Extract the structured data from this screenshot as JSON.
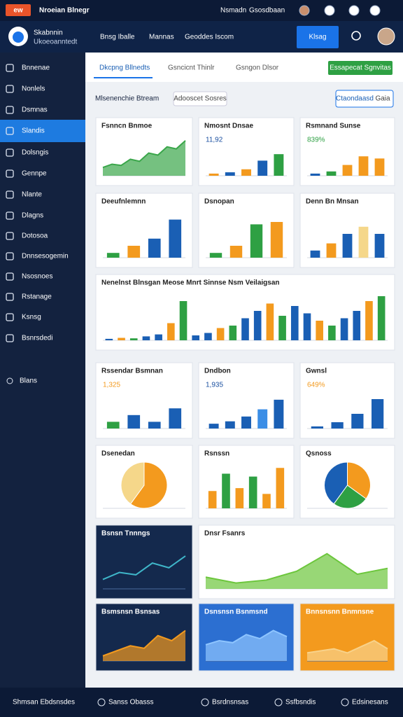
{
  "top_bar": {
    "badge": "ew",
    "title": "Nroeian Blnegr",
    "links": [
      "Nsmadn",
      "Gsosdbaan"
    ]
  },
  "header": {
    "brand": "Skabnnin",
    "subtitle": "Ukoeoanntedt",
    "nav": [
      "Bnsg Iballe",
      "Mannas",
      "Geoddes Iscom"
    ],
    "button": "Klsag"
  },
  "sidebar": {
    "items": [
      "Bnnenae",
      "Nonlels",
      "Dsmnas",
      "Slandis",
      "Dolsngis",
      "Gennpe",
      "Nlante",
      "Dlagns",
      "Dotosoa",
      "Dnnsesogemin",
      "Nsosnoes",
      "Rstanage",
      "Ksnsg",
      "Bsnrsdedi"
    ],
    "active": 3,
    "footer_item": "Blans"
  },
  "tabs": {
    "items": [
      "Dkcpng Bllnedts",
      "Gsncicnt Thinlr",
      "Gsngon Dlsor"
    ],
    "active": 0,
    "action": "Essapecat Sgnvitas"
  },
  "section": {
    "title": "Mlsenenchie Btream",
    "filter": "Adooscet Sosres",
    "button": "Ctaondaasd",
    "button2": "Gaia"
  },
  "cards": [
    {
      "title": "Fsnncn Bnmoe",
      "kind": "area",
      "values": [
        20,
        28,
        25,
        40,
        35,
        55,
        50,
        70,
        65,
        85
      ],
      "colors": [
        "#3aa64a"
      ],
      "ylim": [
        0,
        100
      ],
      "bg": "#ffffff"
    },
    {
      "title": "Nmosnt Dnsae",
      "value": "11,92",
      "value_color": "#1a4fa0",
      "kind": "bar",
      "values": [
        5,
        8,
        15,
        35,
        50
      ],
      "colors": [
        "#f39a1e",
        "#1a5fb4",
        "#f39a1e",
        "#1a5fb4",
        "#2ea043"
      ],
      "ylim": [
        0,
        60
      ],
      "bg": "#ffffff"
    },
    {
      "title": "Rsmnand Sunse",
      "value": "839%",
      "value_color": "#2ea043",
      "kind": "bar",
      "values": [
        5,
        10,
        25,
        45,
        40
      ],
      "colors": [
        "#1a5fb4",
        "#2ea043",
        "#f39a1e",
        "#f39a1e",
        "#f39a1e"
      ],
      "ylim": [
        0,
        60
      ],
      "bg": "#ffffff"
    },
    {
      "title": "Deeufnlemnn",
      "kind": "bar",
      "values": [
        10,
        25,
        40,
        80
      ],
      "colors": [
        "#2ea043",
        "#f39a1e",
        "#1a5fb4",
        "#1a5fb4"
      ],
      "ylim": [
        0,
        100
      ],
      "bg": "#ffffff"
    },
    {
      "title": "Dsnopan",
      "kind": "bar",
      "values": [
        10,
        25,
        70,
        75
      ],
      "colors": [
        "#2ea043",
        "#f39a1e",
        "#2ea043",
        "#f39a1e"
      ],
      "ylim": [
        0,
        100
      ],
      "bg": "#ffffff"
    },
    {
      "title": "Denn Bn Mnsan",
      "kind": "bar",
      "values": [
        15,
        30,
        50,
        65,
        50
      ],
      "colors": [
        "#1a5fb4",
        "#f39a1e",
        "#1a5fb4",
        "#f5d78a",
        "#1a5fb4"
      ],
      "ylim": [
        0,
        100
      ],
      "bg": "#ffffff"
    },
    {
      "title": "Nenelnst Blnsgan Meose Mnrt Sinnse Nsm Veilaigsan",
      "kind": "bar",
      "values": [
        3,
        5,
        4,
        8,
        12,
        35,
        80,
        10,
        15,
        25,
        30,
        45,
        60,
        75,
        50,
        70,
        55,
        40,
        30,
        45,
        60,
        80,
        90
      ],
      "colors": [
        "#1a5fb4",
        "#f39a1e",
        "#2ea043",
        "#1a5fb4"
      ],
      "ylim": [
        0,
        100
      ],
      "bg": "#ffffff"
    },
    {
      "title": "Rssendar Bsmnan",
      "value": "1,325",
      "value_color": "#f39a1e",
      "kind": "bar",
      "values": [
        20,
        40,
        20,
        60
      ],
      "colors": [
        "#2ea043",
        "#1a5fb4",
        "#1a5fb4",
        "#1a5fb4"
      ],
      "ylim": [
        0,
        100
      ],
      "bg": "#ffffff"
    },
    {
      "title": "Dndbon",
      "value": "1,935",
      "value_color": "#1a4fa0",
      "kind": "bar",
      "values": [
        10,
        15,
        25,
        40,
        60
      ],
      "colors": [
        "#1a5fb4",
        "#1a5fb4",
        "#1a5fb4",
        "#3b8ee6",
        "#1a5fb4"
      ],
      "ylim": [
        0,
        70
      ],
      "bg": "#ffffff"
    },
    {
      "title": "Gwnsl",
      "value": "649%",
      "value_color": "#f39a1e",
      "kind": "bar",
      "values": [
        5,
        15,
        35,
        70
      ],
      "colors": [
        "#1a5fb4"
      ],
      "ylim": [
        0,
        80
      ],
      "bg": "#ffffff"
    },
    {
      "title": "Dsenedan",
      "kind": "pie",
      "values": [
        60,
        40
      ],
      "colors": [
        "#f39a1e",
        "#f5d78a"
      ],
      "bg": "#ffffff"
    },
    {
      "title": "Rsnssn",
      "kind": "bar",
      "values": [
        30,
        60,
        35,
        55,
        25,
        70
      ],
      "colors": [
        "#f39a1e",
        "#2ea043",
        "#f39a1e",
        "#2ea043",
        "#f39a1e",
        "#f39a1e"
      ],
      "ylim": [
        0,
        80
      ],
      "bg": "#ffffff"
    },
    {
      "title": "Qsnoss",
      "kind": "pie",
      "values": [
        35,
        25,
        40
      ],
      "colors": [
        "#f39a1e",
        "#2ea043",
        "#1a5fb4"
      ],
      "bg": "#ffffff"
    },
    {
      "title": "Bsnsn Tnnngs",
      "kind": "line",
      "values": [
        20,
        35,
        30,
        55,
        45,
        70
      ],
      "colors": [
        "#3fb6c9"
      ],
      "ylim": [
        0,
        100
      ],
      "bg": "#14294d"
    },
    {
      "title": "Dnsr Fsanrs",
      "kind": "area",
      "values": [
        20,
        10,
        15,
        30,
        60,
        25,
        35
      ],
      "colors": [
        "#6cc63c"
      ],
      "ylim": [
        0,
        80
      ],
      "bg": "#ffffff"
    },
    {
      "title": "Bsmsnsn Bsnsas",
      "kind": "area",
      "values": [
        10,
        20,
        30,
        25,
        50,
        40,
        60
      ],
      "colors": [
        "#f39a1e"
      ],
      "ylim": [
        0,
        80
      ],
      "bg": "#14294d"
    },
    {
      "title": "Dsnsnsn Bsnmsnd",
      "kind": "area",
      "values": [
        40,
        50,
        45,
        65,
        55,
        75,
        60
      ],
      "colors": [
        "#8ec5ff"
      ],
      "ylim": [
        0,
        100
      ],
      "bg": "#2c6fd1"
    },
    {
      "title": "Bnnsnsnn Bnmnsne",
      "kind": "area",
      "values": [
        20,
        25,
        30,
        20,
        35,
        50,
        30
      ],
      "colors": [
        "#f8d28a"
      ],
      "ylim": [
        0,
        100
      ],
      "bg": "#f39a1e"
    }
  ],
  "footer": {
    "items": [
      "Shmsan Ebdsnsdes",
      "Sanss Obasss",
      "Bsrdnsnsas",
      "Ssfbsndis",
      "Edsinesans"
    ]
  }
}
